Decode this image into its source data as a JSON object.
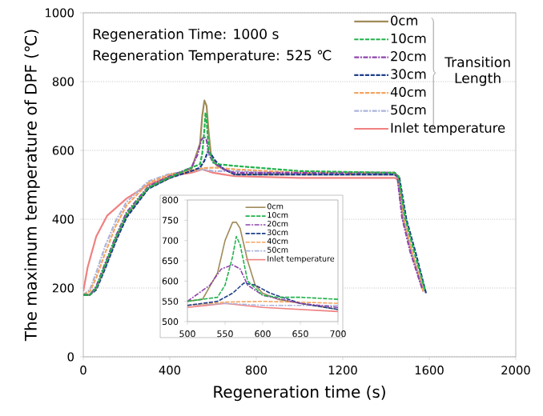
{
  "chart_data": [
    {
      "type": "line",
      "xlabel": "Regeneration time (s)",
      "ylabel": "The maximum temperature of DPF (℃)",
      "annotations": [
        "Regeneration Time: 1000 s",
        "Regeneration Temperature: 525 ℃",
        "Transition Length"
      ],
      "xlim": [
        0,
        2000
      ],
      "ylim": [
        0,
        1000
      ],
      "xticks": [
        0,
        400,
        800,
        1200,
        1600,
        2000
      ],
      "yticks": [
        0,
        200,
        400,
        600,
        800,
        1000
      ],
      "grid": "y",
      "legend": "top right",
      "series": [
        {
          "name": "0cm",
          "color": "#a08c5a",
          "line_style": "solid",
          "x": [
            0,
            30,
            60,
            100,
            150,
            200,
            300,
            400,
            500,
            540,
            550,
            560,
            570,
            580,
            590,
            600,
            620,
            700,
            1000,
            1440,
            1455,
            1480,
            1520,
            1573
          ],
          "values": [
            180,
            180,
            200,
            260,
            340,
            410,
            490,
            520,
            545,
            620,
            700,
            745,
            730,
            650,
            590,
            570,
            555,
            530,
            530,
            530,
            520,
            400,
            300,
            190
          ]
        },
        {
          "name": "10cm",
          "color": "#22b24c",
          "line_style": "dashed",
          "x": [
            0,
            30,
            60,
            100,
            150,
            200,
            300,
            400,
            500,
            540,
            550,
            560,
            565,
            570,
            580,
            600,
            620,
            700,
            1000,
            1440,
            1458,
            1488,
            1530,
            1580
          ],
          "values": [
            180,
            180,
            200,
            265,
            345,
            415,
            492,
            522,
            550,
            560,
            590,
            660,
            710,
            690,
            600,
            565,
            560,
            555,
            540,
            535,
            525,
            405,
            305,
            195
          ]
        },
        {
          "name": "20cm",
          "color": "#8e44ad",
          "line_style": "dashdot",
          "x": [
            0,
            30,
            60,
            100,
            150,
            200,
            300,
            400,
            500,
            530,
            545,
            560,
            570,
            580,
            600,
            650,
            700,
            1000,
            1440,
            1452,
            1474,
            1512,
            1566
          ],
          "values": [
            180,
            180,
            205,
            270,
            350,
            420,
            495,
            525,
            550,
            590,
            630,
            640,
            630,
            590,
            565,
            545,
            535,
            535,
            535,
            525,
            405,
            305,
            200
          ]
        },
        {
          "name": "30cm",
          "color": "#1f3f8a",
          "line_style": "dashed",
          "x": [
            0,
            30,
            60,
            100,
            150,
            200,
            300,
            400,
            500,
            540,
            560,
            575,
            590,
            610,
            650,
            700,
            1000,
            1440,
            1462,
            1494,
            1538,
            1585
          ],
          "values": [
            180,
            180,
            195,
            255,
            335,
            405,
            488,
            520,
            540,
            550,
            570,
            595,
            590,
            570,
            545,
            530,
            530,
            530,
            520,
            400,
            300,
            185
          ]
        },
        {
          "name": "40cm",
          "color": "#f4a460",
          "line_style": "dashed",
          "x": [
            0,
            30,
            60,
            100,
            150,
            200,
            300,
            400,
            500,
            550,
            600,
            650,
            700,
            1000,
            1440,
            1455,
            1480,
            1520,
            1573
          ],
          "values": [
            180,
            190,
            230,
            300,
            380,
            440,
            505,
            530,
            540,
            548,
            550,
            548,
            545,
            535,
            535,
            525,
            405,
            305,
            190
          ]
        },
        {
          "name": "50cm",
          "color": "#aab4dd",
          "line_style": "dashdot",
          "x": [
            0,
            30,
            60,
            100,
            150,
            200,
            300,
            400,
            500,
            550,
            600,
            650,
            700,
            1000,
            1440,
            1455,
            1480,
            1520,
            1573
          ],
          "values": [
            180,
            195,
            245,
            320,
            395,
            450,
            510,
            532,
            540,
            545,
            540,
            540,
            540,
            530,
            530,
            520,
            400,
            300,
            190
          ]
        },
        {
          "name": "Inlet temperature",
          "color": "#f08080",
          "line_style": "solid",
          "x": [
            0,
            20,
            60,
            110,
            200,
            300,
            400,
            500,
            550,
            600,
            650,
            700,
            1000,
            1440,
            1455,
            1480,
            1520,
            1573
          ],
          "values": [
            190,
            260,
            350,
            410,
            460,
            500,
            525,
            535,
            545,
            535,
            530,
            525,
            520,
            520,
            515,
            400,
            300,
            190
          ]
        }
      ]
    },
    {
      "type": "line",
      "xlim": [
        500,
        700
      ],
      "ylim": [
        500,
        800
      ],
      "xticks": [
        500,
        550,
        600,
        650,
        700
      ],
      "yticks": [
        500,
        550,
        600,
        650,
        700,
        750,
        800
      ],
      "legend": "top right",
      "series": [
        {
          "name": "0cm",
          "color": "#a08c5a",
          "line_style": "solid",
          "x": [
            500,
            520,
            540,
            550,
            560,
            565,
            570,
            580,
            590,
            600,
            620,
            650,
            700
          ],
          "values": [
            550,
            555,
            620,
            700,
            745,
            745,
            730,
            650,
            590,
            570,
            555,
            545,
            530
          ]
        },
        {
          "name": "10cm",
          "color": "#22b24c",
          "line_style": "dashed",
          "x": [
            500,
            540,
            550,
            560,
            565,
            570,
            580,
            600,
            620,
            650,
            700
          ],
          "values": [
            550,
            560,
            590,
            660,
            710,
            690,
            600,
            565,
            560,
            560,
            555
          ]
        },
        {
          "name": "20cm",
          "color": "#8e44ad",
          "line_style": "dashdot",
          "x": [
            500,
            530,
            545,
            560,
            570,
            580,
            600,
            650,
            700
          ],
          "values": [
            550,
            590,
            630,
            640,
            630,
            590,
            565,
            545,
            535
          ]
        },
        {
          "name": "30cm",
          "color": "#1f3f8a",
          "line_style": "dashed",
          "x": [
            500,
            540,
            560,
            575,
            590,
            610,
            650,
            700
          ],
          "values": [
            540,
            550,
            570,
            595,
            590,
            570,
            545,
            530
          ]
        },
        {
          "name": "40cm",
          "color": "#f4a460",
          "line_style": "dashed",
          "x": [
            500,
            550,
            600,
            650,
            700
          ],
          "values": [
            540,
            548,
            550,
            548,
            545
          ]
        },
        {
          "name": "50cm",
          "color": "#aab4dd",
          "line_style": "dashdot",
          "x": [
            500,
            550,
            600,
            650,
            700
          ],
          "values": [
            540,
            545,
            540,
            540,
            540
          ]
        },
        {
          "name": "Inlet temperature",
          "color": "#f08080",
          "line_style": "solid",
          "x": [
            500,
            550,
            600,
            650,
            700
          ],
          "values": [
            535,
            545,
            535,
            530,
            525
          ]
        }
      ]
    }
  ]
}
